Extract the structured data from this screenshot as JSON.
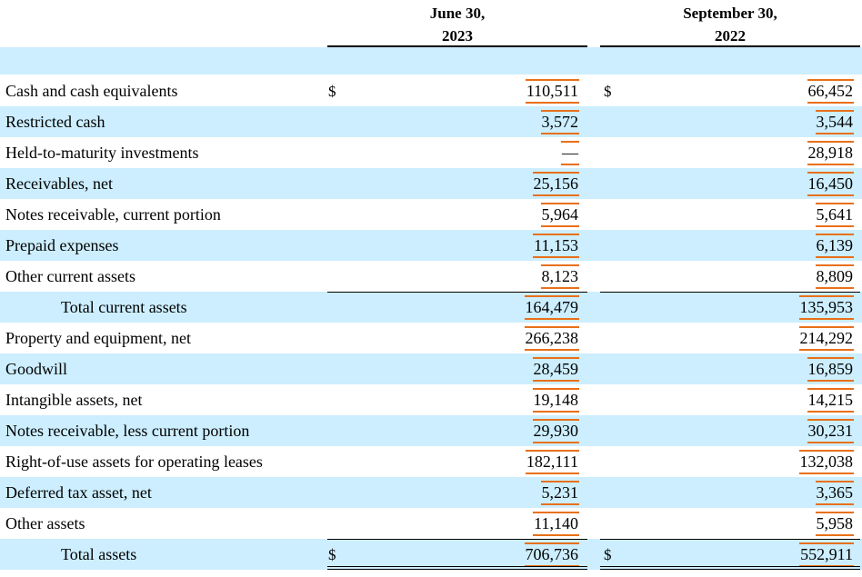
{
  "columns": [
    {
      "line1": "June 30,",
      "line2": "2023"
    },
    {
      "line1": "September 30,",
      "line2": "2022"
    }
  ],
  "currency_symbol": "$",
  "rows": [
    {
      "label": "Cash and cash equivalents",
      "v2023": "110,511",
      "v2022": "66,452",
      "indent": false,
      "shaded": false,
      "currency": true
    },
    {
      "label": "Restricted cash",
      "v2023": "3,572",
      "v2022": "3,544",
      "indent": false,
      "shaded": true,
      "currency": false
    },
    {
      "label": "Held-to-maturity investments",
      "v2023": "—",
      "v2022": "28,918",
      "indent": false,
      "shaded": false,
      "currency": false
    },
    {
      "label": "Receivables, net",
      "v2023": "25,156",
      "v2022": "16,450",
      "indent": false,
      "shaded": true,
      "currency": false
    },
    {
      "label": "Notes receivable, current portion",
      "v2023": "5,964",
      "v2022": "5,641",
      "indent": false,
      "shaded": false,
      "currency": false
    },
    {
      "label": "Prepaid expenses",
      "v2023": "11,153",
      "v2022": "6,139",
      "indent": false,
      "shaded": true,
      "currency": false
    },
    {
      "label": "Other current assets",
      "v2023": "8,123",
      "v2022": "8,809",
      "indent": false,
      "shaded": false,
      "currency": false
    },
    {
      "label": "Total current assets",
      "v2023": "164,479",
      "v2022": "135,953",
      "indent": true,
      "shaded": true,
      "currency": false
    },
    {
      "label": "Property and equipment, net",
      "v2023": "266,238",
      "v2022": "214,292",
      "indent": false,
      "shaded": false,
      "currency": false
    },
    {
      "label": "Goodwill",
      "v2023": "28,459",
      "v2022": "16,859",
      "indent": false,
      "shaded": true,
      "currency": false
    },
    {
      "label": "Intangible assets, net",
      "v2023": "19,148",
      "v2022": "14,215",
      "indent": false,
      "shaded": false,
      "currency": false
    },
    {
      "label": "Notes receivable, less current portion",
      "v2023": "29,930",
      "v2022": "30,231",
      "indent": false,
      "shaded": true,
      "currency": false
    },
    {
      "label": "Right-of-use assets for operating leases",
      "v2023": "182,111",
      "v2022": "132,038",
      "indent": false,
      "shaded": false,
      "currency": false
    },
    {
      "label": "Deferred tax asset, net",
      "v2023": "5,231",
      "v2022": "3,365",
      "indent": false,
      "shaded": true,
      "currency": false
    },
    {
      "label": "Other assets",
      "v2023": "11,140",
      "v2022": "5,958",
      "indent": false,
      "shaded": false,
      "currency": false
    },
    {
      "label": "Total assets",
      "v2023": "706,736",
      "v2022": "552,911",
      "indent": true,
      "shaded": true,
      "currency": true
    }
  ],
  "colors": {
    "band": "#cceeff",
    "highlight": "#e8701a"
  }
}
